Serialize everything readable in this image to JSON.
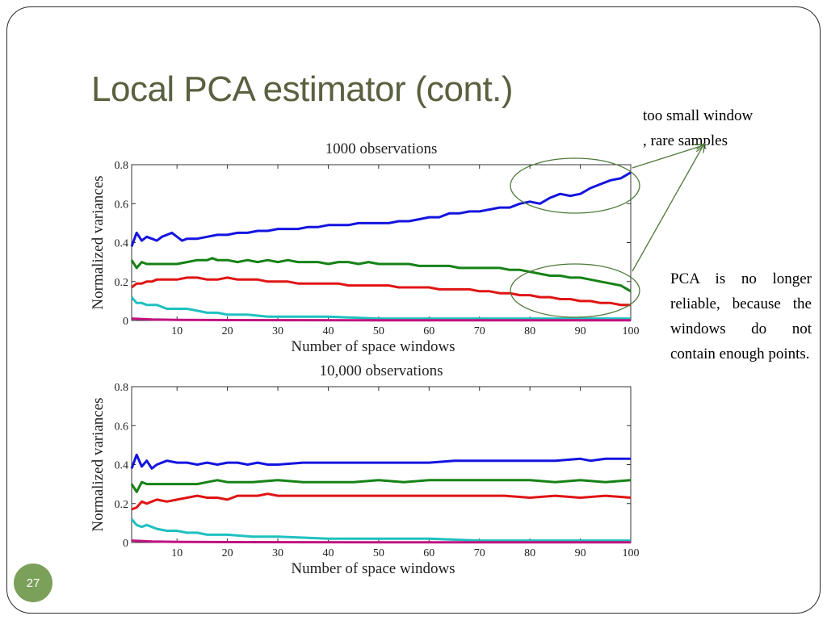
{
  "slide": {
    "title": "Local PCA estimator (cont.)",
    "number": "27",
    "note_top_line1": "too small window",
    "note_top_line2": ", rare samples",
    "note_bottom": "PCA is no longer reliable, because the windows do not contain enough points."
  },
  "colors": {
    "title": "#59613f",
    "annotation": "#4e7a3a",
    "badge": "#7ba05a",
    "series": [
      "#1414e0",
      "#168216",
      "#e01414",
      "#20c0c0",
      "#c01480"
    ]
  },
  "chart_data": [
    {
      "type": "line",
      "title": "1000 observations",
      "xlabel": "Number of space windows",
      "ylabel": "Normalized variances",
      "xlim": [
        1,
        100
      ],
      "ylim": [
        0,
        0.8
      ],
      "xticks": [
        10,
        20,
        30,
        40,
        50,
        60,
        70,
        80,
        90,
        100
      ],
      "yticks": [
        0,
        0.2,
        0.4,
        0.6,
        0.8
      ],
      "ytick_labels": [
        "0",
        "0.2",
        "0.4",
        "0.6",
        "0.8"
      ],
      "grid": false,
      "series": [
        {
          "color": "#1414e0",
          "x": [
            1,
            2,
            3,
            4,
            5,
            6,
            7,
            8,
            9,
            10,
            11,
            12,
            14,
            16,
            18,
            20,
            22,
            24,
            26,
            28,
            30,
            32,
            34,
            36,
            38,
            40,
            42,
            44,
            46,
            48,
            50,
            52,
            54,
            56,
            58,
            60,
            62,
            64,
            66,
            68,
            70,
            72,
            74,
            76,
            78,
            80,
            82,
            84,
            86,
            88,
            90,
            92,
            94,
            96,
            98,
            100
          ],
          "y": [
            0.38,
            0.45,
            0.41,
            0.43,
            0.42,
            0.41,
            0.43,
            0.44,
            0.45,
            0.43,
            0.41,
            0.42,
            0.42,
            0.43,
            0.44,
            0.44,
            0.45,
            0.45,
            0.46,
            0.46,
            0.47,
            0.47,
            0.47,
            0.48,
            0.48,
            0.49,
            0.49,
            0.49,
            0.5,
            0.5,
            0.5,
            0.5,
            0.51,
            0.51,
            0.52,
            0.53,
            0.53,
            0.55,
            0.55,
            0.56,
            0.56,
            0.57,
            0.58,
            0.58,
            0.6,
            0.61,
            0.6,
            0.63,
            0.65,
            0.64,
            0.65,
            0.68,
            0.7,
            0.72,
            0.73,
            0.76
          ]
        },
        {
          "color": "#168216",
          "x": [
            1,
            2,
            3,
            4,
            5,
            8,
            10,
            12,
            14,
            16,
            17,
            18,
            20,
            22,
            24,
            26,
            28,
            30,
            32,
            34,
            36,
            38,
            40,
            42,
            44,
            46,
            48,
            50,
            52,
            54,
            56,
            58,
            60,
            62,
            64,
            66,
            68,
            70,
            72,
            74,
            76,
            78,
            80,
            82,
            84,
            86,
            88,
            90,
            92,
            94,
            96,
            98,
            100
          ],
          "y": [
            0.31,
            0.27,
            0.3,
            0.29,
            0.29,
            0.29,
            0.29,
            0.3,
            0.31,
            0.31,
            0.32,
            0.31,
            0.31,
            0.3,
            0.31,
            0.3,
            0.31,
            0.3,
            0.31,
            0.3,
            0.3,
            0.3,
            0.29,
            0.3,
            0.3,
            0.29,
            0.3,
            0.29,
            0.29,
            0.29,
            0.29,
            0.28,
            0.28,
            0.28,
            0.28,
            0.27,
            0.27,
            0.27,
            0.27,
            0.27,
            0.26,
            0.26,
            0.25,
            0.24,
            0.23,
            0.23,
            0.22,
            0.22,
            0.21,
            0.2,
            0.19,
            0.18,
            0.15
          ]
        },
        {
          "color": "#e01414",
          "x": [
            1,
            2,
            3,
            4,
            5,
            6,
            8,
            10,
            12,
            14,
            16,
            18,
            20,
            22,
            24,
            26,
            28,
            30,
            32,
            34,
            36,
            38,
            40,
            42,
            44,
            46,
            48,
            50,
            52,
            54,
            56,
            58,
            60,
            62,
            64,
            66,
            68,
            70,
            72,
            74,
            76,
            78,
            80,
            82,
            84,
            86,
            88,
            90,
            92,
            94,
            96,
            98,
            100
          ],
          "y": [
            0.17,
            0.19,
            0.19,
            0.2,
            0.2,
            0.21,
            0.21,
            0.21,
            0.22,
            0.22,
            0.21,
            0.21,
            0.22,
            0.21,
            0.21,
            0.21,
            0.2,
            0.2,
            0.2,
            0.19,
            0.19,
            0.19,
            0.19,
            0.19,
            0.18,
            0.18,
            0.18,
            0.18,
            0.18,
            0.17,
            0.17,
            0.17,
            0.17,
            0.16,
            0.16,
            0.16,
            0.16,
            0.15,
            0.15,
            0.14,
            0.14,
            0.13,
            0.13,
            0.12,
            0.12,
            0.11,
            0.11,
            0.1,
            0.1,
            0.09,
            0.09,
            0.08,
            0.08
          ]
        },
        {
          "color": "#20c0c0",
          "x": [
            1,
            2,
            3,
            4,
            5,
            6,
            8,
            10,
            12,
            14,
            16,
            18,
            20,
            24,
            28,
            32,
            36,
            40,
            50,
            60,
            70,
            80,
            90,
            100
          ],
          "y": [
            0.12,
            0.09,
            0.09,
            0.08,
            0.08,
            0.08,
            0.06,
            0.06,
            0.06,
            0.05,
            0.04,
            0.04,
            0.03,
            0.03,
            0.02,
            0.02,
            0.02,
            0.02,
            0.01,
            0.01,
            0.01,
            0.01,
            0.01,
            0.01
          ]
        },
        {
          "color": "#c01480",
          "x": [
            1,
            5,
            10,
            20,
            50,
            100
          ],
          "y": [
            0.01,
            0.005,
            0.003,
            0.002,
            0.001,
            0.001
          ]
        }
      ]
    },
    {
      "type": "line",
      "title": "10,000 observations",
      "xlabel": "Number of space windows",
      "ylabel": "Normalized variances",
      "xlim": [
        1,
        100
      ],
      "ylim": [
        0,
        0.8
      ],
      "xticks": [
        10,
        20,
        30,
        40,
        50,
        60,
        70,
        80,
        90,
        100
      ],
      "yticks": [
        0,
        0.2,
        0.4,
        0.6,
        0.8
      ],
      "ytick_labels": [
        "0",
        "0.2",
        "0.4",
        "0.6",
        "0.8"
      ],
      "grid": false,
      "series": [
        {
          "color": "#1414e0",
          "x": [
            1,
            2,
            3,
            4,
            5,
            6,
            8,
            10,
            12,
            14,
            16,
            18,
            20,
            22,
            24,
            26,
            28,
            30,
            35,
            40,
            45,
            50,
            55,
            60,
            65,
            70,
            75,
            80,
            85,
            90,
            92,
            95,
            100
          ],
          "y": [
            0.38,
            0.45,
            0.39,
            0.42,
            0.38,
            0.4,
            0.42,
            0.41,
            0.41,
            0.4,
            0.41,
            0.4,
            0.41,
            0.41,
            0.4,
            0.41,
            0.4,
            0.4,
            0.41,
            0.41,
            0.41,
            0.41,
            0.41,
            0.41,
            0.42,
            0.42,
            0.42,
            0.42,
            0.42,
            0.43,
            0.42,
            0.43,
            0.43
          ]
        },
        {
          "color": "#168216",
          "x": [
            1,
            2,
            3,
            4,
            5,
            6,
            8,
            10,
            12,
            14,
            16,
            18,
            20,
            25,
            30,
            35,
            40,
            45,
            50,
            55,
            60,
            65,
            70,
            75,
            80,
            85,
            90,
            95,
            100
          ],
          "y": [
            0.3,
            0.26,
            0.31,
            0.3,
            0.3,
            0.3,
            0.3,
            0.3,
            0.3,
            0.3,
            0.31,
            0.32,
            0.31,
            0.31,
            0.32,
            0.31,
            0.31,
            0.31,
            0.32,
            0.31,
            0.32,
            0.32,
            0.32,
            0.32,
            0.32,
            0.31,
            0.32,
            0.31,
            0.32
          ]
        },
        {
          "color": "#e01414",
          "x": [
            1,
            2,
            3,
            4,
            5,
            6,
            8,
            10,
            12,
            14,
            16,
            18,
            20,
            22,
            24,
            26,
            28,
            30,
            35,
            40,
            45,
            50,
            55,
            60,
            65,
            70,
            75,
            80,
            85,
            90,
            95,
            100
          ],
          "y": [
            0.17,
            0.18,
            0.21,
            0.2,
            0.21,
            0.22,
            0.21,
            0.22,
            0.23,
            0.24,
            0.23,
            0.23,
            0.22,
            0.24,
            0.24,
            0.24,
            0.25,
            0.24,
            0.24,
            0.24,
            0.24,
            0.24,
            0.24,
            0.24,
            0.24,
            0.24,
            0.24,
            0.23,
            0.24,
            0.23,
            0.24,
            0.23
          ]
        },
        {
          "color": "#20c0c0",
          "x": [
            1,
            2,
            3,
            4,
            5,
            6,
            8,
            10,
            12,
            14,
            16,
            20,
            25,
            30,
            40,
            50,
            60,
            70,
            80,
            90,
            100
          ],
          "y": [
            0.12,
            0.09,
            0.08,
            0.09,
            0.08,
            0.07,
            0.06,
            0.06,
            0.05,
            0.05,
            0.04,
            0.04,
            0.03,
            0.03,
            0.02,
            0.02,
            0.02,
            0.01,
            0.01,
            0.01,
            0.01
          ]
        },
        {
          "color": "#c01480",
          "x": [
            1,
            5,
            10,
            20,
            50,
            100
          ],
          "y": [
            0.01,
            0.005,
            0.003,
            0.002,
            0.001,
            0.001
          ]
        }
      ]
    }
  ]
}
